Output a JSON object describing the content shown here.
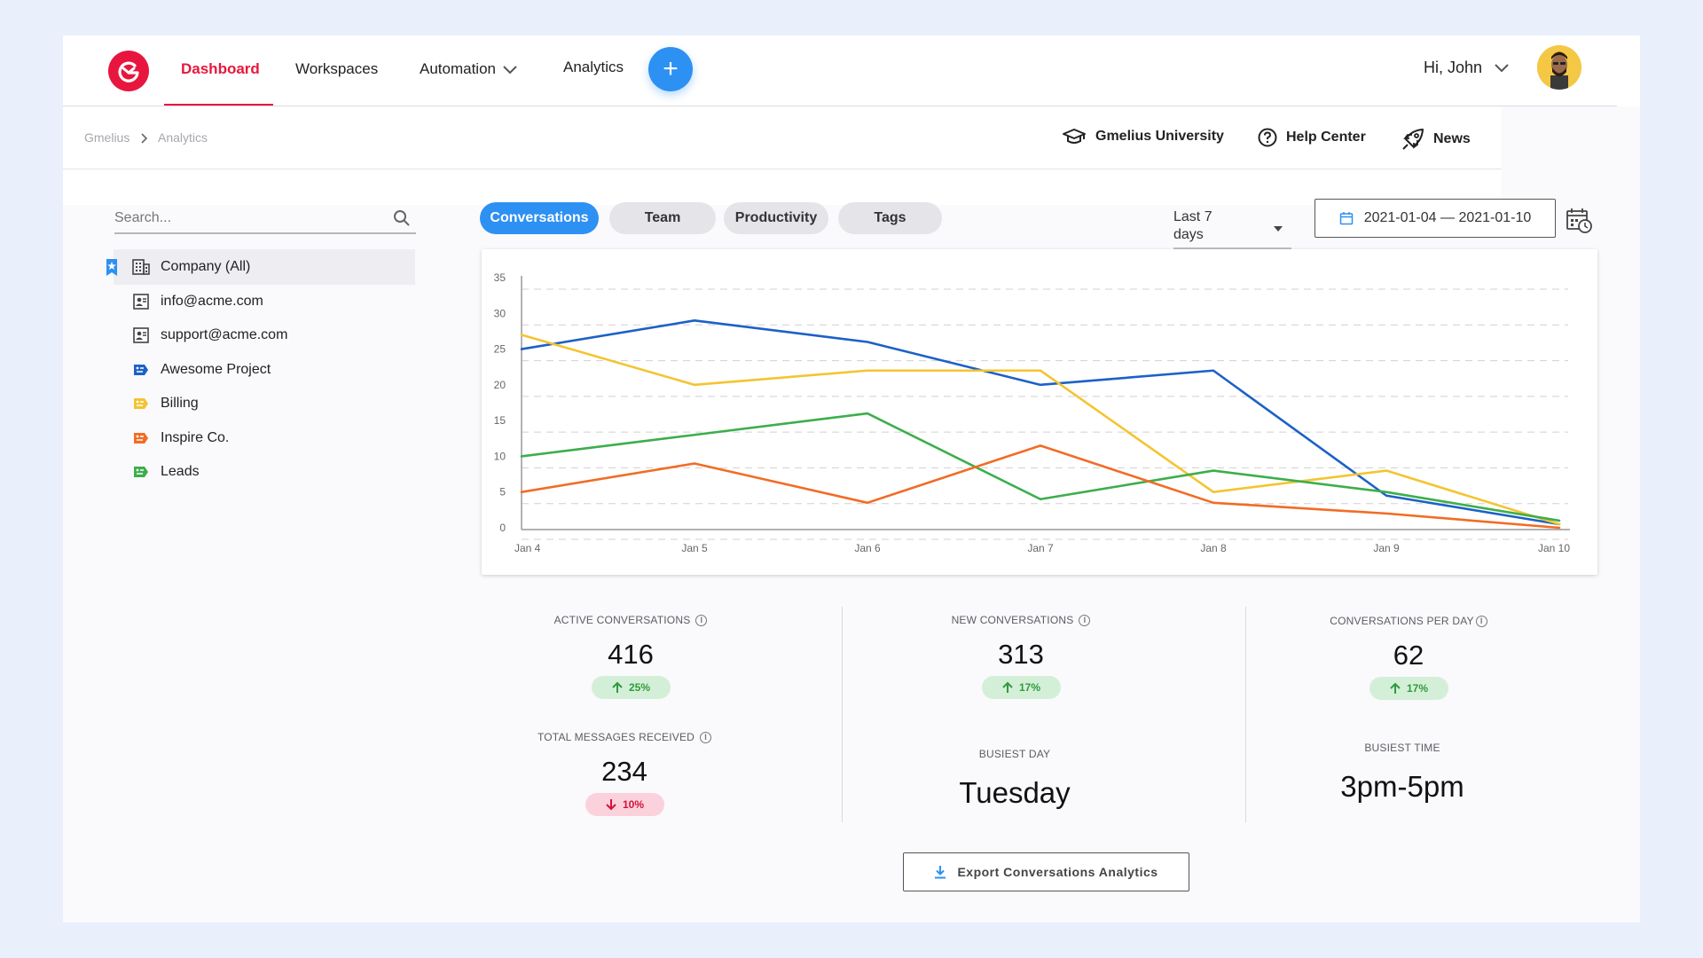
{
  "nav": {
    "items": [
      {
        "label": "Dashboard",
        "active": true
      },
      {
        "label": "Workspaces"
      },
      {
        "label": "Automation",
        "dropdown": true
      },
      {
        "label": "Analytics"
      }
    ],
    "add_button": "+",
    "greeting": "Hi, John",
    "brand_color": "#e8163e",
    "accent_color": "#2d90f3"
  },
  "breadcrumb": [
    "Gmelius",
    "Analytics"
  ],
  "help_links": [
    {
      "label": "Gmelius University",
      "icon": "graduation-cap-icon"
    },
    {
      "label": "Help Center",
      "icon": "question-circle-icon"
    },
    {
      "label": "News",
      "icon": "rocket-icon"
    }
  ],
  "search": {
    "placeholder": "Search...",
    "value": ""
  },
  "sidebar": {
    "items": [
      {
        "label": "Company (All)",
        "icon": "building-icon",
        "active": true,
        "bookmarked": true
      },
      {
        "label": "info@acme.com",
        "icon": "inbox-icon"
      },
      {
        "label": "support@acme.com",
        "icon": "inbox-icon"
      },
      {
        "label": "Awesome Project",
        "icon": "tag-icon",
        "color": "#1c61c6"
      },
      {
        "label": "Billing",
        "icon": "tag-icon",
        "color": "#f4c430"
      },
      {
        "label": "Inspire Co.",
        "icon": "tag-icon",
        "color": "#f26c24"
      },
      {
        "label": "Leads",
        "icon": "tag-icon",
        "color": "#3cae4c"
      }
    ]
  },
  "tabs": [
    {
      "label": "Conversations",
      "active": true
    },
    {
      "label": "Team"
    },
    {
      "label": "Productivity"
    },
    {
      "label": "Tags"
    }
  ],
  "range": {
    "line1": "Last 7",
    "line2": "days"
  },
  "date_range": "2021-01-04 — 2021-01-10",
  "chart_data": {
    "type": "line",
    "categories": [
      "Jan 4",
      "Jan 5",
      "Jan 6",
      "Jan 7",
      "Jan 8",
      "Jan 9",
      "Jan 10"
    ],
    "y_ticks": [
      "0",
      "5",
      "10",
      "15",
      "20",
      "25",
      "30",
      "35"
    ],
    "ylim": [
      0,
      35
    ],
    "grid": true,
    "series": [
      {
        "color": "#1c61c6",
        "values": [
          25,
          29,
          26,
          20,
          22,
          4.5,
          0.5
        ]
      },
      {
        "color": "#f4c430",
        "values": [
          27,
          20,
          22,
          22,
          5,
          8,
          0.5
        ]
      },
      {
        "color": "#3cae4c",
        "values": [
          10,
          13,
          16,
          4,
          8,
          5,
          1
        ]
      },
      {
        "color": "#f26c24",
        "values": [
          5,
          9,
          3.5,
          11.5,
          3.5,
          2,
          0
        ]
      }
    ]
  },
  "stats": {
    "active": {
      "label": "ACTIVE CONVERSATIONS",
      "value": "416",
      "change": "25%"
    },
    "total_messages": {
      "label": "TOTAL MESSAGES RECEIVED",
      "value": "234",
      "change": "10%"
    },
    "new": {
      "label": "NEW CONVERSATIONS",
      "value": "313",
      "change": "17%"
    },
    "busiest_day": {
      "label": "BUSIEST DAY",
      "value": "Tuesday"
    },
    "per_day": {
      "label": "CONVERSATIONS PER DAY",
      "value": "62",
      "change": "17%"
    },
    "busiest_time": {
      "label": "BUSIEST TIME",
      "value": "3pm-5pm"
    }
  },
  "export_label": "Export Conversations Analytics"
}
